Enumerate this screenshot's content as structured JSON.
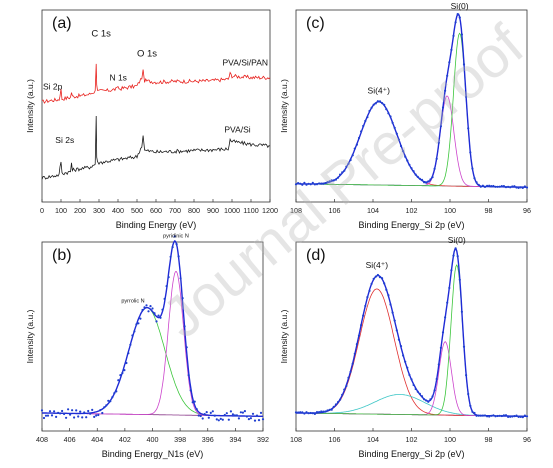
{
  "watermark": "Journal Pre-proof",
  "chart_data": [
    {
      "type": "line",
      "panel_label": "(a)",
      "xlabel": "Binding Energy (eV)",
      "ylabel": "Intensity (a.u.)",
      "xlim": [
        0,
        1200
      ],
      "xticks": [
        "0",
        "100",
        "200",
        "300",
        "400",
        "500",
        "600",
        "700",
        "800",
        "900",
        "1000",
        "1100",
        "1200"
      ],
      "y_ticks_shown": false,
      "series": [
        {
          "name": "PVA/Si/PAN",
          "color": "#e8211d",
          "x": [
            0,
            50,
            90,
            100,
            105,
            110,
            150,
            155,
            160,
            200,
            250,
            280,
            285,
            288,
            292,
            300,
            350,
            395,
            400,
            405,
            450,
            500,
            525,
            532,
            540,
            600,
            700,
            800,
            900,
            980,
            990,
            1000,
            1100,
            1200
          ],
          "y": [
            0.56,
            0.57,
            0.575,
            0.64,
            0.58,
            0.58,
            0.59,
            0.625,
            0.595,
            0.6,
            0.61,
            0.63,
            0.82,
            0.68,
            0.63,
            0.63,
            0.635,
            0.645,
            0.665,
            0.645,
            0.655,
            0.665,
            0.72,
            0.76,
            0.7,
            0.69,
            0.695,
            0.695,
            0.7,
            0.71,
            0.745,
            0.73,
            0.72,
            0.72
          ]
        },
        {
          "name": "PVA/Si",
          "color": "#1a1a1a",
          "x": [
            0,
            50,
            90,
            100,
            105,
            110,
            150,
            155,
            160,
            200,
            250,
            280,
            285,
            288,
            292,
            300,
            400,
            500,
            525,
            532,
            540,
            600,
            700,
            800,
            900,
            980,
            990,
            1000,
            1100,
            1200
          ],
          "y": [
            0.06,
            0.07,
            0.08,
            0.17,
            0.09,
            0.09,
            0.1,
            0.16,
            0.11,
            0.12,
            0.13,
            0.15,
            0.47,
            0.2,
            0.16,
            0.16,
            0.18,
            0.2,
            0.27,
            0.34,
            0.24,
            0.23,
            0.235,
            0.24,
            0.245,
            0.25,
            0.31,
            0.3,
            0.28,
            0.27
          ]
        }
      ],
      "annotations": [
        "Si 2p",
        "C 1s",
        "N 1s",
        "O 1s",
        "PVA/Si/PAN",
        "Si 2s",
        "PVA/Si"
      ]
    },
    {
      "type": "line",
      "panel_label": "(b)",
      "xlabel": "Binding Energy_N1s (eV)",
      "ylabel": "Intensity (a.u.)",
      "xlim": [
        408,
        392
      ],
      "xticks": [
        "408",
        "406",
        "404",
        "402",
        "400",
        "398",
        "396",
        "394",
        "392"
      ],
      "peaks": [
        {
          "label": "pyrrolic N",
          "position": 400.4,
          "height": 0.64,
          "width": 1.3,
          "color": "#3cc63c"
        },
        {
          "label": "pyridinic N",
          "position": 398.3,
          "height": 0.86,
          "width": 0.55,
          "color": "#cc44cc"
        }
      ],
      "background_color": "#8a3a8a",
      "envelope_color": "#1f2bd6",
      "data_color": "#1f3fd0",
      "y_ticks_shown": false
    },
    {
      "type": "line",
      "panel_label": "(c)",
      "xlabel": "Binding Energy_Si 2p (eV)",
      "ylabel": "Intensity (a.u.)",
      "xlim": [
        108,
        96
      ],
      "xticks": [
        "108",
        "106",
        "104",
        "102",
        "100",
        "98",
        "96"
      ],
      "peaks": [
        {
          "label": "Si(4⁺)",
          "position": 103.7,
          "height": 0.49,
          "width": 0.95,
          "color": "#e03030"
        },
        {
          "label": "",
          "position": 100.15,
          "height": 0.53,
          "width": 0.35,
          "color": "#cc44cc"
        },
        {
          "label": "Si(0)",
          "position": 99.5,
          "height": 0.9,
          "width": 0.32,
          "color": "#3cc63c"
        }
      ],
      "background_color": "#3cc6c6",
      "envelope_color": "#1f2bd6",
      "data_color": "#1f3fd0",
      "y_ticks_shown": false
    },
    {
      "type": "line",
      "panel_label": "(d)",
      "xlabel": "Binding Energy_Si 2p (eV)",
      "ylabel": "Intensity (a.u.)",
      "xlim": [
        108,
        96
      ],
      "xticks": [
        "108",
        "106",
        "104",
        "102",
        "100",
        "98",
        "96"
      ],
      "peaks": [
        {
          "label": "Si(4⁺)",
          "position": 103.8,
          "height": 0.75,
          "width": 0.9,
          "color": "#e03030"
        },
        {
          "label": "",
          "position": 102.6,
          "height": 0.12,
          "width": 1.3,
          "color": "#3cc6c6"
        },
        {
          "label": "",
          "position": 100.25,
          "height": 0.44,
          "width": 0.32,
          "color": "#cc44cc"
        },
        {
          "label": "Si(0)",
          "position": 99.65,
          "height": 0.9,
          "width": 0.3,
          "color": "#3cc63c"
        }
      ],
      "background_color": "#8a3a8a",
      "envelope_color": "#1f2bd6",
      "data_color": "#1f3fd0",
      "y_ticks_shown": false
    }
  ]
}
